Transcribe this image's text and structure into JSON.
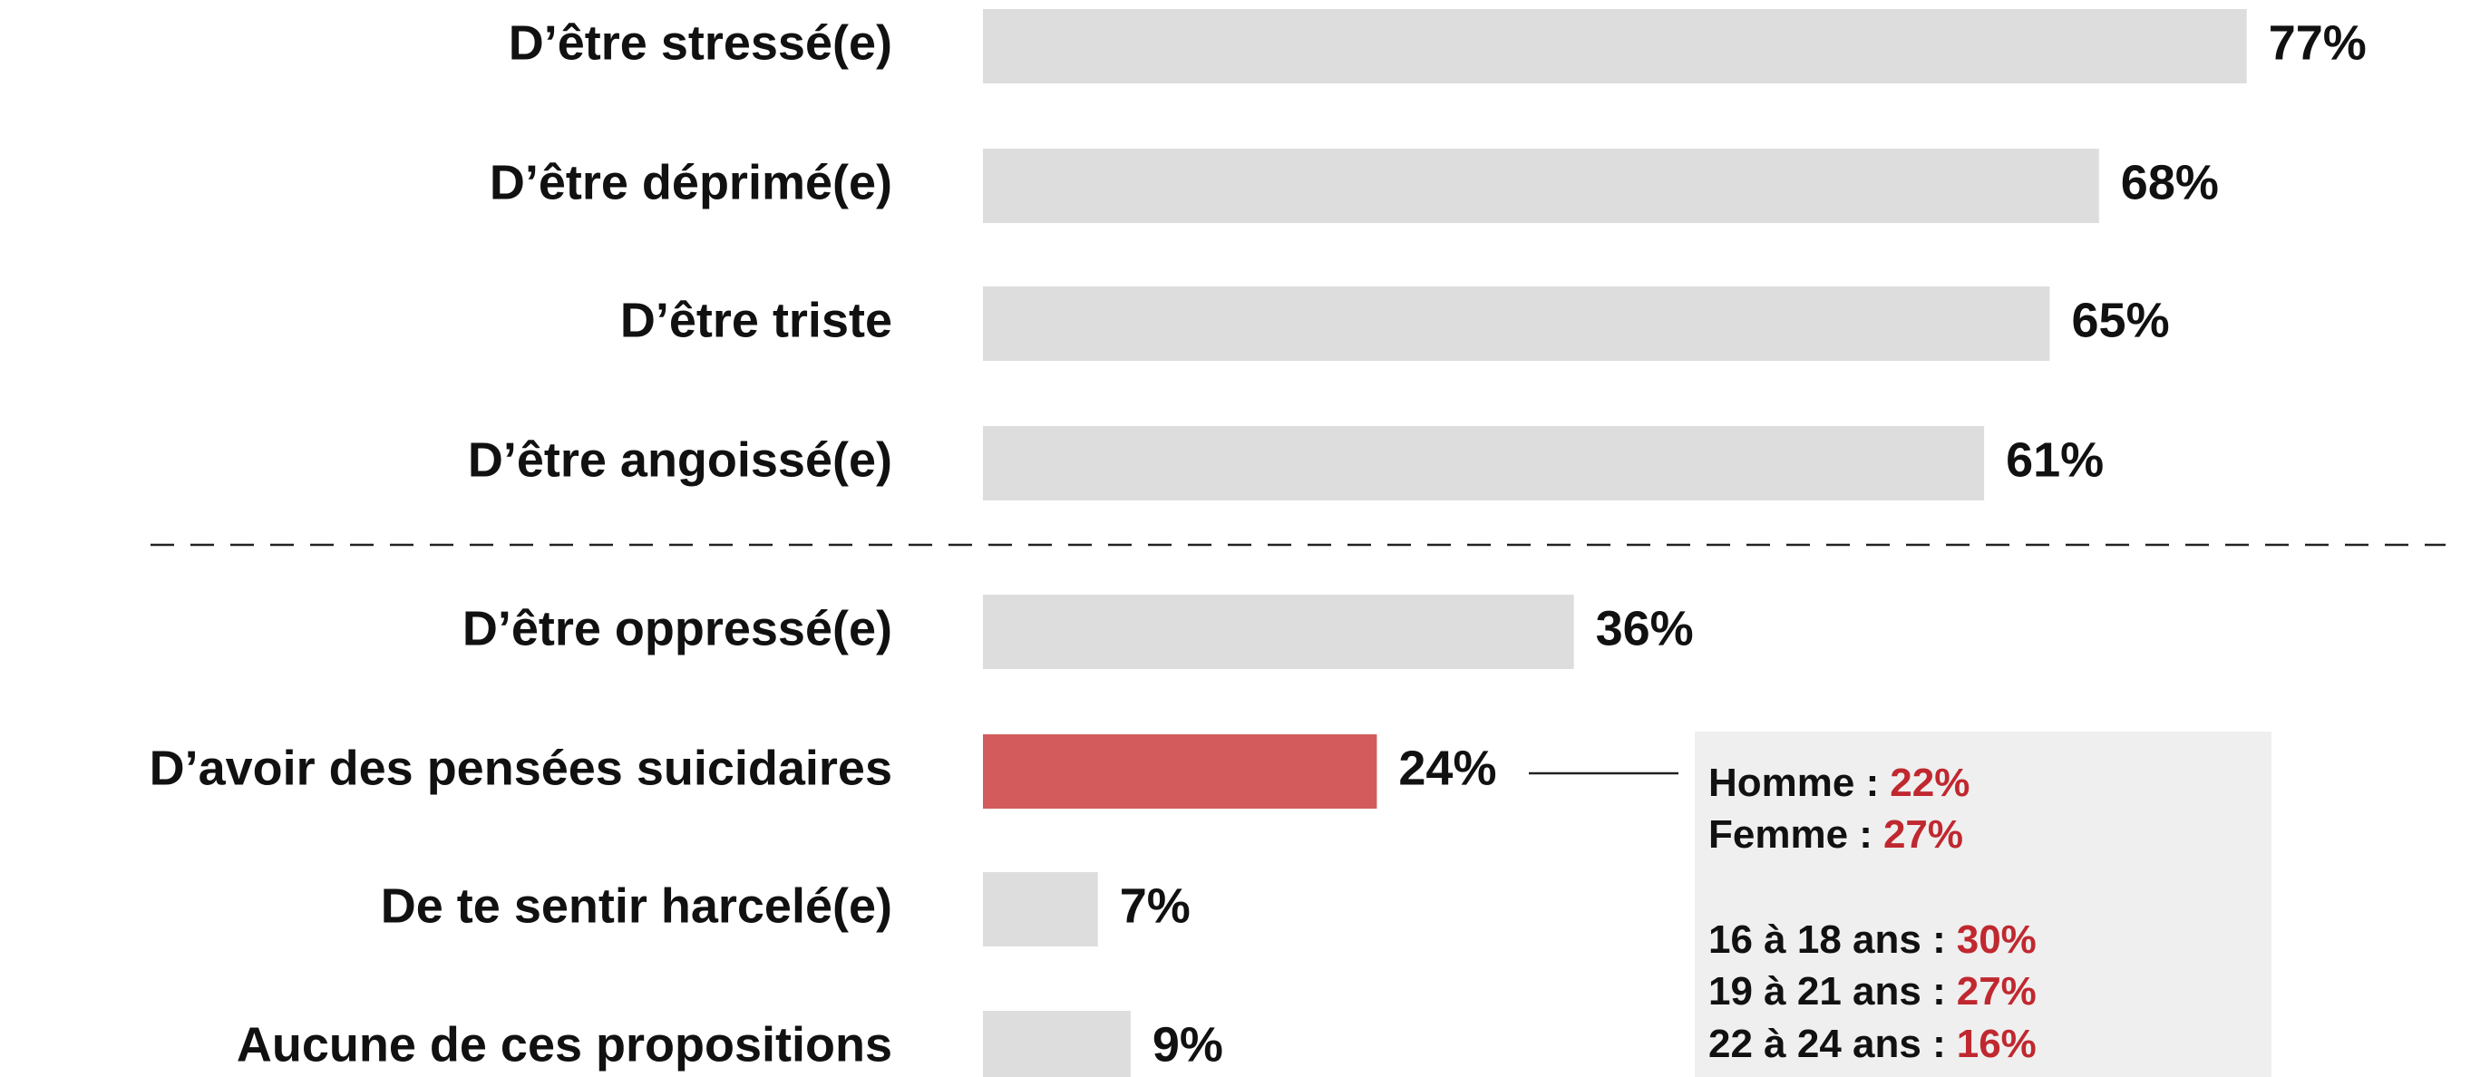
{
  "chart_data": {
    "type": "bar",
    "orientation": "horizontal",
    "categories": [
      "D’être stressé(e)",
      "D’être déprimé(e)",
      "D’être triste",
      "D’être angoissé(e)",
      "D’être oppressé(e)",
      "D’avoir des pensées suicidaires",
      "De te sentir harcelé(e)",
      "Aucune de ces propositions"
    ],
    "values": [
      77,
      68,
      65,
      61,
      36,
      24,
      7,
      9
    ],
    "value_labels": [
      "77%",
      "68%",
      "65%",
      "61%",
      "36%",
      "24%",
      "7%",
      "9%"
    ],
    "colors": [
      "#dcdddc",
      "#dcdddc",
      "#dcdddc",
      "#dcdddc",
      "#dcdddc",
      "#d35b5b",
      "#dcdddc",
      "#dcdddc"
    ],
    "annotation": [
      {
        "label": "Homme :",
        "value": 22,
        "value_label": "22%"
      },
      {
        "label": "Femme :",
        "value": 27,
        "value_label": "27%"
      },
      {
        "label": "16 à 18 ans :",
        "value": 30,
        "value_label": "30%"
      },
      {
        "label": "19 à 21 ans :",
        "value": 27,
        "value_label": "27%"
      },
      {
        "label": "22 à 24 ans :",
        "value": 16,
        "value_label": "16%"
      }
    ]
  }
}
